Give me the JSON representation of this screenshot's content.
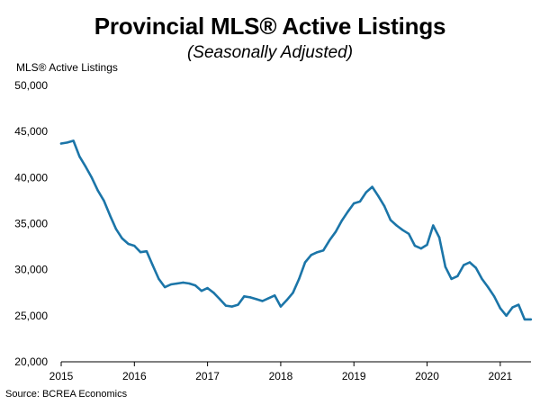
{
  "chart_data": {
    "type": "line",
    "title": "Provincial MLS® Active Listings",
    "subtitle": "(Seasonally Adjusted)",
    "ylabel": "MLS® Active Listings",
    "xlabel": "",
    "source": "Source: BCREA Economics",
    "ylim": [
      20000,
      50000
    ],
    "xlim": [
      2015,
      2021.42
    ],
    "y_ticks": [
      20000,
      25000,
      30000,
      35000,
      40000,
      45000,
      50000
    ],
    "y_tick_labels": [
      "20,000",
      "25,000",
      "30,000",
      "35,000",
      "40,000",
      "45,000",
      "50,000"
    ],
    "x_ticks": [
      2015,
      2016,
      2017,
      2018,
      2019,
      2020,
      2021
    ],
    "x_tick_labels": [
      "2015",
      "2016",
      "2017",
      "2018",
      "2019",
      "2020",
      "2021"
    ],
    "grid": false,
    "legend": "none",
    "series": [
      {
        "color": "#1b75a8",
        "x": [
          2015.0,
          2015.083,
          2015.167,
          2015.25,
          2015.333,
          2015.417,
          2015.5,
          2015.583,
          2015.667,
          2015.75,
          2015.833,
          2015.917,
          2016.0,
          2016.083,
          2016.167,
          2016.25,
          2016.333,
          2016.417,
          2016.5,
          2016.583,
          2016.667,
          2016.75,
          2016.833,
          2016.917,
          2017.0,
          2017.083,
          2017.167,
          2017.25,
          2017.333,
          2017.417,
          2017.5,
          2017.583,
          2017.667,
          2017.75,
          2017.833,
          2017.917,
          2018.0,
          2018.083,
          2018.167,
          2018.25,
          2018.333,
          2018.417,
          2018.5,
          2018.583,
          2018.667,
          2018.75,
          2018.833,
          2018.917,
          2019.0,
          2019.083,
          2019.167,
          2019.25,
          2019.333,
          2019.417,
          2019.5,
          2019.583,
          2019.667,
          2019.75,
          2019.833,
          2019.917,
          2020.0,
          2020.083,
          2020.167,
          2020.25,
          2020.333,
          2020.417,
          2020.5,
          2020.583,
          2020.667,
          2020.75,
          2020.833,
          2020.917,
          2021.0,
          2021.083,
          2021.167,
          2021.25,
          2021.333,
          2021.417
        ],
        "y": [
          43700,
          43800,
          44000,
          42300,
          41200,
          40000,
          38600,
          37500,
          35900,
          34400,
          33400,
          32800,
          32600,
          31900,
          32000,
          30500,
          29000,
          28100,
          28400,
          28500,
          28600,
          28500,
          28300,
          27700,
          28000,
          27500,
          26800,
          26100,
          26000,
          26200,
          27100,
          27000,
          26800,
          26600,
          26900,
          27200,
          26000,
          26700,
          27500,
          29000,
          30800,
          31600,
          31900,
          32100,
          33200,
          34100,
          35300,
          36300,
          37200,
          37400,
          38400,
          39000,
          38000,
          36900,
          35400,
          34800,
          34300,
          33900,
          32600,
          32300,
          32700,
          34800,
          33500,
          30300,
          29000,
          29300,
          30500,
          30800,
          30200,
          29000,
          28100,
          27100,
          25800,
          25000,
          25900,
          26200,
          24600,
          24600
        ]
      }
    ]
  }
}
